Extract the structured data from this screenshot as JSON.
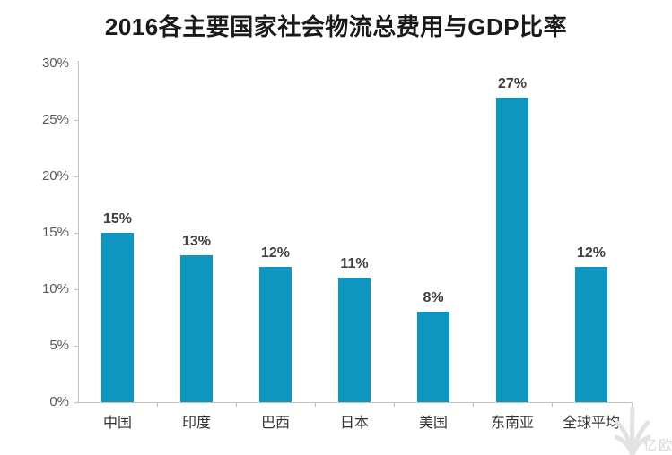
{
  "page": {
    "title": "2016各主要国家社会物流总费用与GDP比率"
  },
  "watermark": {
    "brand": "亿欧"
  },
  "chart_data": {
    "type": "bar",
    "title": "2016各主要国家社会物流总费用与GDP比率",
    "categories": [
      "中国",
      "印度",
      "巴西",
      "日本",
      "美国",
      "东南亚",
      "全球平均"
    ],
    "values": [
      15,
      13,
      12,
      11,
      8,
      27,
      12
    ],
    "value_labels": [
      "15%",
      "13%",
      "12%",
      "11%",
      "8%",
      "27%",
      "12%"
    ],
    "xlabel": "",
    "ylabel": "",
    "ylim": [
      0,
      30
    ],
    "ytick_values": [
      0,
      5,
      10,
      15,
      20,
      25,
      30
    ],
    "ytick_labels": [
      "0%",
      "5%",
      "10%",
      "15%",
      "20%",
      "25%",
      "30%"
    ],
    "grid": false,
    "legend": "none",
    "colors": {
      "bar": "#0e96c1",
      "axis": "#c2c2c2",
      "ytick_label": "#595959",
      "value_label": "#3f3f3f",
      "category_label": "#333333",
      "title": "#1a1a1a",
      "watermark": "#d6d6d6",
      "background": "#ffffff"
    }
  }
}
